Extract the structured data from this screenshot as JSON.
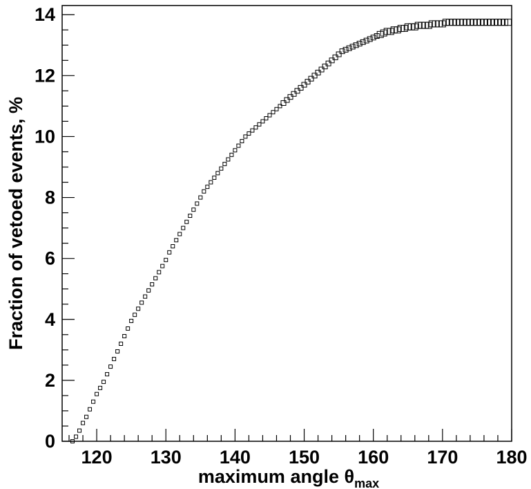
{
  "chart_data": {
    "type": "scatter",
    "title": "",
    "xlabel": "maximum angle θ",
    "xlabel_subscript": "max",
    "ylabel": "Fraction of vetoed events, %",
    "xlim": [
      115,
      180
    ],
    "ylim": [
      0,
      14.3
    ],
    "x_ticks": [
      "120",
      "130",
      "140",
      "150",
      "160",
      "170",
      "180"
    ],
    "y_ticks": [
      "0",
      "2",
      "4",
      "6",
      "8",
      "10",
      "12",
      "14"
    ],
    "grid": false,
    "legend": "none",
    "marker": "open-square",
    "series": [
      {
        "x": [
          116.5,
          117.0,
          117.5,
          118.0,
          118.5,
          119.0,
          119.5,
          120.0,
          120.5,
          121.0,
          121.5,
          122.0,
          122.5,
          123.0,
          123.5,
          124.0,
          124.5,
          125.0,
          125.5,
          126.0,
          126.5,
          127.0,
          127.5,
          128.0,
          128.5,
          129.0,
          129.5,
          130.0,
          130.5,
          131.0,
          131.5,
          132.0,
          132.5,
          133.0,
          133.5,
          134.0,
          134.5,
          135.0,
          135.5,
          136.0,
          136.5,
          137.0,
          137.5,
          138.0,
          138.5,
          139.0,
          139.5,
          140.0,
          140.5,
          141.0,
          141.5,
          142.0,
          142.5,
          143.0,
          143.5,
          144.0,
          144.5,
          145.0,
          145.5,
          146.0,
          146.5,
          147.0,
          147.5,
          148.0,
          148.5,
          149.0,
          149.5,
          150.0,
          150.5,
          151.0,
          151.5,
          152.0,
          152.5,
          153.0,
          153.5,
          154.0,
          154.5,
          155.0,
          155.5,
          156.0,
          156.5,
          157.0,
          157.5,
          158.0,
          158.5,
          159.0,
          159.5,
          160.0,
          160.5,
          161.0,
          161.5,
          162.0,
          162.5,
          163.0,
          163.5,
          164.0,
          164.5,
          165.0,
          165.5,
          166.0,
          166.5,
          167.0,
          167.5,
          168.0,
          168.5,
          169.0,
          169.5,
          170.0,
          170.5,
          171.0,
          171.5,
          172.0,
          172.5,
          173.0,
          173.5,
          174.0,
          174.5,
          175.0,
          175.5,
          176.0,
          176.5,
          177.0,
          177.5,
          178.0,
          178.5,
          179.0,
          179.5
        ],
        "y": [
          0.0,
          0.15,
          0.35,
          0.6,
          0.8,
          1.05,
          1.3,
          1.55,
          1.75,
          1.95,
          2.2,
          2.45,
          2.7,
          2.95,
          3.2,
          3.45,
          3.7,
          3.95,
          4.15,
          4.35,
          4.55,
          4.75,
          4.95,
          5.15,
          5.35,
          5.55,
          5.75,
          5.95,
          6.2,
          6.4,
          6.6,
          6.8,
          7.0,
          7.2,
          7.4,
          7.6,
          7.8,
          8.0,
          8.2,
          8.35,
          8.5,
          8.65,
          8.8,
          8.95,
          9.1,
          9.25,
          9.4,
          9.55,
          9.7,
          9.85,
          10.0,
          10.1,
          10.2,
          10.3,
          10.4,
          10.5,
          10.6,
          10.7,
          10.8,
          10.9,
          11.0,
          11.1,
          11.2,
          11.3,
          11.4,
          11.5,
          11.6,
          11.7,
          11.8,
          11.9,
          12.0,
          12.1,
          12.2,
          12.3,
          12.4,
          12.5,
          12.6,
          12.7,
          12.8,
          12.85,
          12.9,
          12.95,
          13.0,
          13.05,
          13.1,
          13.15,
          13.2,
          13.25,
          13.3,
          13.35,
          13.4,
          13.45,
          13.45,
          13.5,
          13.5,
          13.55,
          13.55,
          13.6,
          13.6,
          13.6,
          13.65,
          13.65,
          13.65,
          13.65,
          13.7,
          13.7,
          13.7,
          13.7,
          13.75,
          13.75,
          13.75,
          13.75,
          13.75,
          13.75,
          13.75,
          13.75,
          13.75,
          13.75,
          13.75,
          13.75,
          13.75,
          13.75,
          13.75,
          13.75,
          13.75,
          13.75,
          13.75
        ]
      }
    ]
  }
}
